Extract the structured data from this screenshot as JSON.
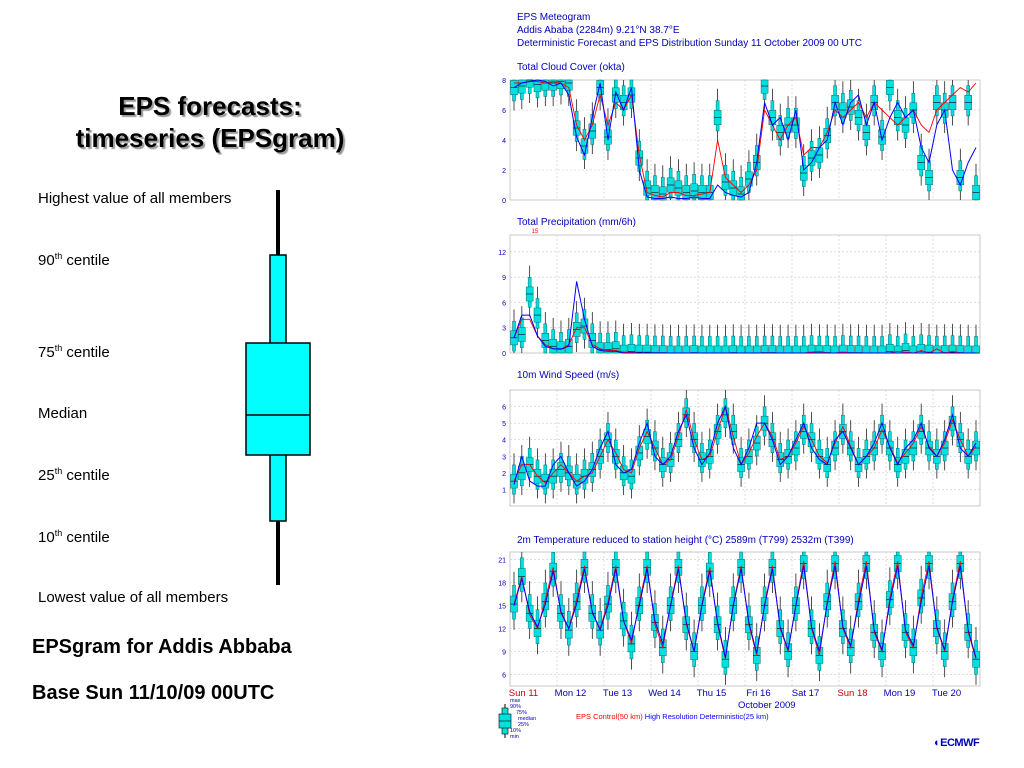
{
  "slide": {
    "title_line1": "EPS forecasts:",
    "title_line2": "timeseries (EPSgram)",
    "caption1": "EPSgram for Addis Abbaba",
    "caption2": "Base Sun 11/10/09 00UTC"
  },
  "box_legend": {
    "highest": "Highest value of all members",
    "p90": "90",
    "p75": "75",
    "median": "Median",
    "p25": "25",
    "p10": "10",
    "lowest": "Lowest value of all members",
    "th": "th",
    "centile": " centile"
  },
  "chart_data": {
    "type": "boxplot-timeseries",
    "header": [
      "EPS Meteogram",
      "Addis Ababa (2284m) 9.21°N 38.7°E",
      "Deterministic Forecast and EPS Distribution Sunday 11 October 2009 00 UTC"
    ],
    "days": [
      "Sun 11",
      "Mon 12",
      "Tue 13",
      "Wed 14",
      "Thu 15",
      "Fri 16",
      "Sat 17",
      "Sun 18",
      "Mon 19",
      "Tue 20"
    ],
    "sunday_days": [
      "Sun 11",
      "Sun 18"
    ],
    "month_label": "October 2009",
    "key_labels": [
      "max",
      "90%",
      "75%",
      "median",
      "25%",
      "10%",
      "min"
    ],
    "series_legend": {
      "control": "EPS Control(50 km)",
      "hires": "High Resolution Deterministic(25 km)"
    },
    "colors": {
      "box": "#00e0e0",
      "control": "#ff0000",
      "hires": "#0000ff",
      "title": "#0000bb",
      "grid": "#c8c8c8"
    },
    "logo": "ECMWF",
    "panels": [
      {
        "name": "cloud",
        "title": "Total Cloud Cover (okta)",
        "ylim": [
          0,
          8
        ],
        "yticks": [
          0,
          2,
          4,
          6,
          8
        ],
        "medians": [
          7.5,
          7.6,
          8,
          7.7,
          7.8,
          7.8,
          7.9,
          7.8,
          4.8,
          3.6,
          4.6,
          7.5,
          4.2,
          7,
          6.5,
          7,
          2.8,
          0.8,
          0.5,
          0.4,
          1,
          0.8,
          0.5,
          0.6,
          0.5,
          0.5,
          5.5,
          1.2,
          0.8,
          0.4,
          1.4,
          2.5,
          7.6,
          5.5,
          4.5,
          5,
          5,
          1.8,
          2.8,
          3,
          4.3,
          6.5,
          6,
          6.2,
          5.5,
          4.5,
          6.5,
          4.2,
          7.5,
          5.5,
          5,
          6,
          2.5,
          1.5,
          6.5,
          6,
          6.5,
          1.5,
          6.5,
          0.5
        ],
        "control": [
          7.8,
          7.8,
          7.9,
          7.9,
          7.8,
          7.9,
          7.8,
          7.5,
          5,
          4,
          5,
          7,
          5,
          6.5,
          6,
          7,
          3,
          0.5,
          0.3,
          0.2,
          0.5,
          0.5,
          0.3,
          0.3,
          0.4,
          0.5,
          4,
          1.5,
          1,
          0.5,
          1,
          2,
          6,
          5,
          4,
          5,
          5.5,
          3,
          3.5,
          3.5,
          4.5,
          6,
          5.5,
          6,
          6.5,
          5.5,
          6.5,
          6,
          5.5,
          5,
          5.5,
          6,
          5,
          4.5,
          6,
          6.5,
          7,
          7.5,
          7.2,
          7.8
        ],
        "hires": [
          7.5,
          7.8,
          7.9,
          8,
          7.9,
          7.6,
          7.8,
          7,
          4.2,
          3,
          5.5,
          7.8,
          4,
          7.2,
          6,
          7.5,
          2,
          0.2,
          0.1,
          0.1,
          0.2,
          0.1,
          0.1,
          0.2,
          0.1,
          0.1,
          1,
          0.5,
          0.3,
          0.2,
          0.5,
          2.5,
          6.5,
          5,
          5.5,
          4,
          6,
          2,
          2.5,
          3.5,
          4,
          6.5,
          5,
          6.5,
          7,
          5,
          6.5,
          4,
          5.5,
          6.5,
          5.5,
          6,
          3.5,
          2.5,
          5,
          6,
          2,
          1,
          2.5,
          3.5
        ]
      },
      {
        "name": "precip",
        "title": "Total Precipitation (mm/6h)",
        "ylim": [
          0,
          14
        ],
        "yticks": [
          0,
          3,
          6,
          9,
          12
        ],
        "marker_label": "15",
        "medians": [
          1.8,
          2.2,
          7,
          4.5,
          1.5,
          0.8,
          0.5,
          0.8,
          2.8,
          3.2,
          1.5,
          0.4,
          0.4,
          0.5,
          0.1,
          0.2,
          0.1,
          0.1,
          0.05,
          0.05,
          0,
          0,
          0,
          0.05,
          0,
          0,
          0,
          0,
          0.05,
          0,
          0,
          0,
          0.05,
          0.05,
          0,
          0,
          0,
          0,
          0.1,
          0.05,
          0.05,
          0,
          0.1,
          0.05,
          0.05,
          0,
          0,
          0,
          0.2,
          0,
          0.3,
          0,
          0.2,
          0.1,
          0,
          0.05,
          0.1,
          0.05,
          0,
          0
        ],
        "control": [
          1.8,
          4,
          4,
          2,
          1,
          0.5,
          0.4,
          1,
          3,
          3,
          1,
          0.5,
          0.3,
          0.3,
          0.1,
          0.1,
          0,
          0,
          0,
          0,
          0,
          0,
          0,
          0,
          0,
          0,
          0,
          0,
          0,
          0,
          0,
          0,
          0,
          0,
          0,
          0,
          0,
          0,
          0.1,
          0.2,
          0,
          0,
          0.1,
          0,
          0,
          0,
          0,
          0,
          0,
          0.2,
          0.1,
          0,
          0.3,
          0,
          0.5,
          0,
          0.2,
          0,
          0,
          0
        ],
        "hires": [
          1.8,
          4.5,
          4.5,
          2,
          0.8,
          0.5,
          0.5,
          0.8,
          8.5,
          4,
          0.8,
          0.3,
          0.2,
          0.2,
          0,
          0,
          0,
          0,
          0,
          0,
          0,
          0,
          0,
          0,
          0,
          0,
          0,
          0,
          0,
          0,
          0,
          0,
          0,
          0,
          0,
          0,
          0,
          0,
          0,
          0,
          0,
          0,
          0,
          0,
          0,
          0,
          0,
          0,
          0,
          0,
          0,
          0,
          0,
          0,
          0,
          0,
          0,
          0,
          0,
          0
        ]
      },
      {
        "name": "wind",
        "title": "10m Wind Speed (m/s)",
        "ylim": [
          0,
          7
        ],
        "yticks": [
          1,
          2,
          3,
          4,
          5,
          6
        ],
        "medians": [
          1.5,
          2,
          2.5,
          1.8,
          1.5,
          1.8,
          2.2,
          2,
          1.5,
          1.8,
          2.2,
          3,
          4,
          3,
          2,
          1.8,
          3.2,
          4.2,
          3.5,
          2.5,
          2.8,
          4,
          5.5,
          4,
          2.8,
          3,
          4.5,
          5.5,
          4.5,
          2.5,
          3,
          3.8,
          5,
          4,
          2.8,
          3,
          3.5,
          4.5,
          4,
          3,
          2.5,
          3.5,
          4.5,
          3.5,
          2.5,
          3,
          3.5,
          4.5,
          3.5,
          2.5,
          3,
          3.5,
          4.5,
          3.5,
          3,
          3.5,
          5,
          4,
          3,
          3.5
        ],
        "control": [
          1.5,
          2.5,
          2.5,
          1.8,
          1.4,
          2,
          2.5,
          2,
          1.5,
          1.8,
          2,
          3,
          4,
          3.2,
          2.2,
          2,
          3.5,
          4.5,
          3.5,
          2.5,
          2.8,
          4.2,
          5.8,
          4,
          2.8,
          3,
          4.5,
          6,
          4.2,
          2.5,
          3.2,
          4.2,
          5,
          4.2,
          2.8,
          3,
          3.8,
          4.8,
          4,
          3,
          2.6,
          3.8,
          4.8,
          3.6,
          2.5,
          3,
          3.5,
          4.6,
          3.6,
          2.6,
          3.2,
          3.8,
          4.8,
          3.6,
          3,
          3.8,
          5.2,
          4,
          3,
          3.6
        ],
        "hires": [
          1.3,
          3,
          1.5,
          1.2,
          1.2,
          2.5,
          3,
          2,
          1.2,
          1.5,
          2.2,
          3.5,
          4.5,
          2.5,
          2,
          2.2,
          3.8,
          5,
          3,
          2.5,
          3,
          4.5,
          5.5,
          3.5,
          2.5,
          3.2,
          5,
          6,
          3.5,
          2.5,
          3.5,
          5,
          5,
          4,
          2.5,
          3,
          4,
          5,
          3.5,
          2.8,
          2.5,
          4,
          4.5,
          3.5,
          2.5,
          3,
          3.8,
          5,
          3.5,
          2.5,
          3.5,
          4,
          5,
          3.5,
          3,
          4,
          5.5,
          3.5,
          3,
          3.8
        ]
      },
      {
        "name": "temp",
        "title": "2m Temperature reduced to station height (°C) 2589m (T799) 2532m (T399)",
        "ylim": [
          4.5,
          22
        ],
        "yticks": [
          6,
          9,
          12,
          15,
          18,
          21
        ],
        "medians": [
          15.2,
          18.8,
          14,
          12,
          15.5,
          19.5,
          14,
          11.8,
          15.5,
          20,
          14,
          11.8,
          15.2,
          20,
          13,
          10,
          15,
          20,
          12.8,
          9.5,
          15,
          20,
          12.5,
          9,
          15,
          19.5,
          12.5,
          8,
          15,
          20,
          12.5,
          8.5,
          15,
          20,
          12,
          9,
          15,
          20.5,
          12,
          8.5,
          15.5,
          20.5,
          12,
          9.5,
          15.5,
          20.5,
          11.5,
          9,
          15.8,
          20.5,
          11.5,
          9.5,
          16,
          20.5,
          12,
          9,
          15.5,
          20.5,
          11.5,
          8
        ],
        "control": [
          15.2,
          18.8,
          13.8,
          12,
          15.8,
          20,
          14,
          12,
          15.8,
          20.2,
          14,
          12,
          15.5,
          20.2,
          13,
          10,
          15.5,
          20.2,
          12.5,
          9.5,
          15.2,
          20.2,
          12.5,
          9,
          15.2,
          20,
          12.5,
          8,
          15.2,
          20.2,
          12.5,
          8.5,
          15.2,
          20.2,
          12,
          9,
          15.2,
          20.8,
          12,
          8.5,
          15.5,
          20.8,
          12,
          9.5,
          15.8,
          20.8,
          11.5,
          9,
          16,
          20.8,
          11.5,
          9.5,
          16.2,
          20.8,
          12,
          9,
          15.8,
          20.8,
          11.5,
          8
        ],
        "hires": [
          15,
          18.5,
          14.2,
          12.2,
          15.2,
          19.5,
          14.2,
          12,
          15.2,
          19.8,
          14.2,
          11.8,
          15,
          19.8,
          13,
          10.5,
          15,
          19.8,
          13,
          10,
          15,
          19.8,
          12.8,
          9,
          15,
          19.5,
          12.8,
          8.2,
          15,
          19.8,
          12.8,
          8.8,
          15,
          19.8,
          12.2,
          9.2,
          15,
          20.2,
          12.2,
          9,
          15.2,
          20.2,
          12.2,
          9.8,
          15.2,
          20.2,
          11.8,
          9.2,
          15.5,
          20.2,
          11.8,
          9.8,
          15.5,
          20.2,
          12.2,
          9.2,
          15.5,
          20.2,
          11.8,
          8.2
        ]
      }
    ]
  }
}
